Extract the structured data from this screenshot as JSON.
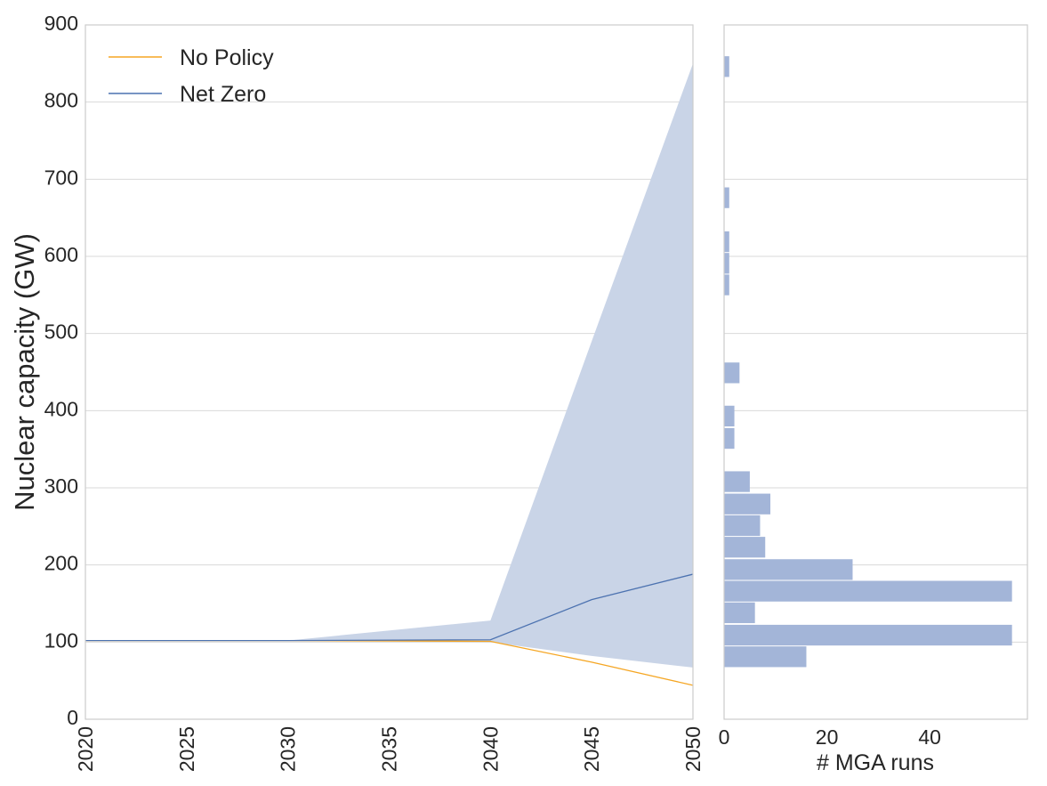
{
  "chart_data": [
    {
      "type": "line",
      "ylabel": "Nuclear capacity (GW)",
      "xlabel": "",
      "xlim": [
        2020,
        2050
      ],
      "ylim": [
        0,
        900
      ],
      "x_ticks": [
        "2020",
        "2025",
        "2030",
        "2035",
        "2040",
        "2045",
        "2050"
      ],
      "y_ticks": [
        "0",
        "100",
        "200",
        "300",
        "400",
        "500",
        "600",
        "700",
        "800",
        "900"
      ],
      "grid": "horizontal",
      "legend_position": "top-left",
      "x": [
        2020,
        2030,
        2040,
        2045,
        2050
      ],
      "series": [
        {
          "name": "No Policy",
          "color": "#f5a623",
          "values": [
            102,
            102,
            101,
            74,
            44
          ]
        },
        {
          "name": "Net Zero",
          "color": "#4c72b0",
          "values": [
            102,
            102,
            103,
            155,
            188
          ]
        }
      ],
      "band": {
        "color": "#c9d4e7",
        "upper": [
          102,
          102,
          128,
          490,
          850
        ],
        "lower": [
          102,
          102,
          100,
          82,
          67
        ]
      }
    },
    {
      "type": "bar",
      "orientation": "horizontal",
      "xlabel": "# MGA runs",
      "ylabel": "",
      "xlim": [
        0,
        59
      ],
      "ylim": [
        0,
        900
      ],
      "x_ticks": [
        "0",
        "20",
        "40"
      ],
      "color": "#a3b5d8",
      "bin_width": 28,
      "bins": [
        {
          "start": 67,
          "count": 16
        },
        {
          "start": 95,
          "count": 56
        },
        {
          "start": 124,
          "count": 6
        },
        {
          "start": 152,
          "count": 56
        },
        {
          "start": 180,
          "count": 25
        },
        {
          "start": 209,
          "count": 8
        },
        {
          "start": 237,
          "count": 7
        },
        {
          "start": 265,
          "count": 9
        },
        {
          "start": 294,
          "count": 5
        },
        {
          "start": 350,
          "count": 2
        },
        {
          "start": 379,
          "count": 2
        },
        {
          "start": 435,
          "count": 3
        },
        {
          "start": 549,
          "count": 1
        },
        {
          "start": 577,
          "count": 1
        },
        {
          "start": 605,
          "count": 1
        },
        {
          "start": 662,
          "count": 1
        },
        {
          "start": 832,
          "count": 1
        }
      ]
    }
  ]
}
